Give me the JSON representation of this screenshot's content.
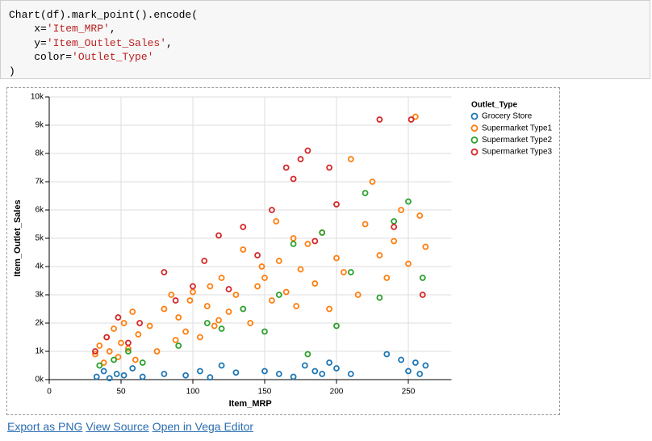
{
  "code": [
    [
      "Chart(df).mark_point().encode("
    ],
    [
      "    x=",
      "'Item_MRP'",
      ","
    ],
    [
      "    y=",
      "'Item_Outlet_Sales'",
      ","
    ],
    [
      "    color=",
      "'Outlet_Type'"
    ],
    [
      ")"
    ]
  ],
  "chart_data": {
    "type": "scatter",
    "x_label": "Item_MRP",
    "y_label": "Item_Outlet_Sales",
    "legend_title": "Outlet_Type",
    "legend": "top-right",
    "grid": true,
    "xlim": [
      0,
      280
    ],
    "xticks": [
      0,
      50,
      100,
      150,
      200,
      250
    ],
    "ylim": [
      0,
      10000
    ],
    "yticks": [
      {
        "value": 0,
        "label": "0k"
      },
      {
        "value": 1000,
        "label": "1k"
      },
      {
        "value": 2000,
        "label": "2k"
      },
      {
        "value": 3000,
        "label": "3k"
      },
      {
        "value": 4000,
        "label": "4k"
      },
      {
        "value": 5000,
        "label": "5k"
      },
      {
        "value": 6000,
        "label": "6k"
      },
      {
        "value": 7000,
        "label": "7k"
      },
      {
        "value": 8000,
        "label": "8k"
      },
      {
        "value": 9000,
        "label": "9k"
      },
      {
        "value": 10000,
        "label": "10k"
      }
    ],
    "series": [
      {
        "name": "Grocery Store",
        "color": "#1f77b4",
        "x": [
          33,
          38,
          42,
          47,
          52,
          58,
          65,
          80,
          95,
          105,
          112,
          120,
          130,
          150,
          160,
          170,
          178,
          185,
          190,
          195,
          200,
          210,
          235,
          245,
          250,
          255,
          258,
          262
        ],
        "values": [
          100,
          300,
          50,
          200,
          150,
          400,
          100,
          200,
          150,
          300,
          80,
          500,
          250,
          300,
          200,
          100,
          500,
          300,
          200,
          600,
          400,
          200,
          900,
          700,
          300,
          600,
          200,
          500
        ]
      },
      {
        "name": "Supermarket Type1",
        "color": "#ff7f0e",
        "x": [
          32,
          35,
          38,
          40,
          42,
          45,
          48,
          50,
          52,
          55,
          58,
          60,
          62,
          70,
          75,
          80,
          85,
          88,
          90,
          95,
          98,
          100,
          105,
          110,
          112,
          115,
          118,
          120,
          125,
          130,
          135,
          140,
          145,
          148,
          150,
          155,
          158,
          160,
          165,
          170,
          172,
          175,
          180,
          185,
          190,
          195,
          200,
          205,
          210,
          215,
          220,
          225,
          230,
          235,
          240,
          245,
          250,
          255,
          258,
          262
        ],
        "values": [
          900,
          1200,
          600,
          1500,
          1000,
          1800,
          800,
          1300,
          2000,
          1100,
          2400,
          700,
          1600,
          1900,
          1000,
          2500,
          3000,
          1400,
          2200,
          1700,
          2800,
          3100,
          1500,
          2600,
          3300,
          1900,
          2100,
          3600,
          2400,
          3000,
          4600,
          2000,
          3300,
          4000,
          3600,
          2800,
          5600,
          4200,
          3100,
          5000,
          2600,
          3900,
          4800,
          3400,
          5200,
          2500,
          4300,
          3800,
          7800,
          3000,
          5500,
          7000,
          4400,
          3600,
          4900,
          6000,
          4100,
          9300,
          5800,
          4700
        ]
      },
      {
        "name": "Supermarket Type2",
        "color": "#2ca02c",
        "x": [
          35,
          45,
          55,
          65,
          90,
          110,
          120,
          135,
          150,
          160,
          170,
          180,
          190,
          200,
          210,
          220,
          230,
          240,
          250,
          260
        ],
        "values": [
          500,
          700,
          1000,
          600,
          1200,
          2000,
          1800,
          2500,
          1700,
          3000,
          4800,
          900,
          5200,
          1900,
          3800,
          6600,
          2900,
          5600,
          6300,
          3600
        ]
      },
      {
        "name": "Supermarket Type3",
        "color": "#d62728",
        "x": [
          32,
          40,
          48,
          55,
          63,
          80,
          88,
          100,
          108,
          118,
          125,
          135,
          145,
          155,
          165,
          170,
          175,
          180,
          185,
          195,
          200,
          230,
          240,
          252,
          260
        ],
        "values": [
          1000,
          1500,
          2200,
          1300,
          2000,
          3800,
          2800,
          3300,
          4200,
          5100,
          3200,
          5400,
          4400,
          6000,
          7500,
          7100,
          7800,
          8100,
          4900,
          7500,
          6200,
          9200,
          5400,
          9200,
          3000
        ]
      }
    ]
  },
  "links": [
    "Export as PNG",
    "View Source",
    "Open in Vega Editor"
  ]
}
